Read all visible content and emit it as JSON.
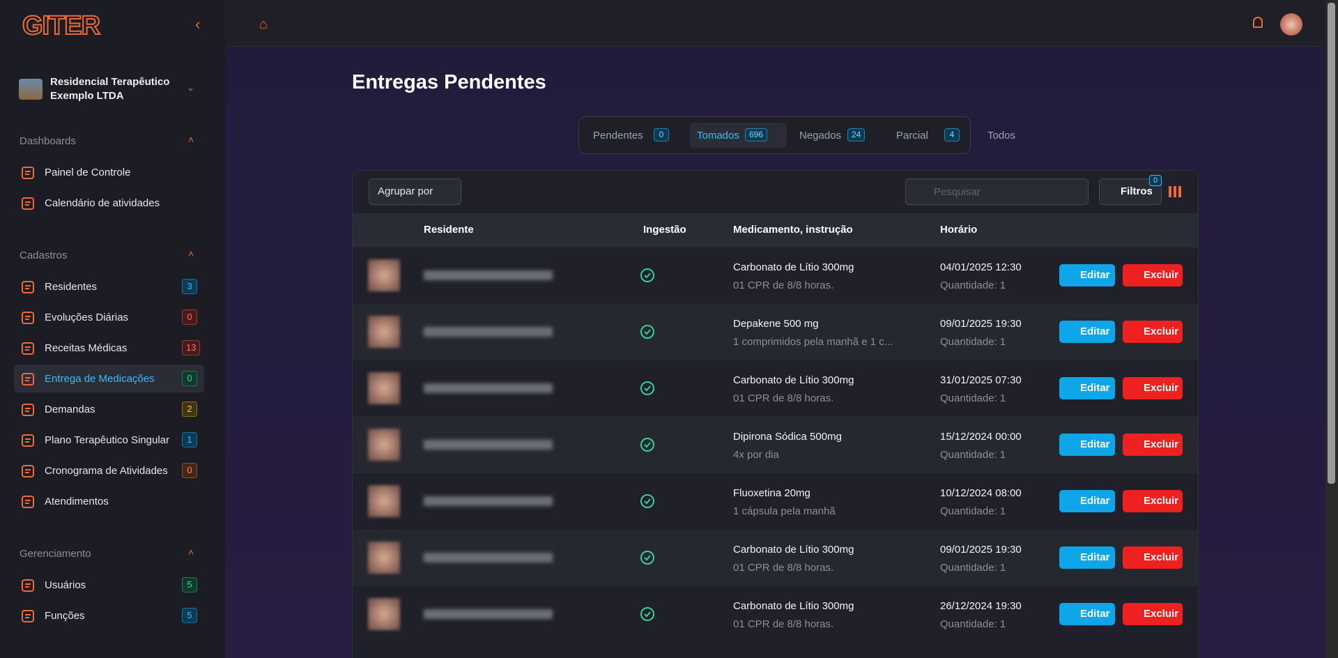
{
  "sidebar": {
    "logo": "GITER",
    "organization": "Residencial Terapêutico Exemplo LTDA",
    "sections": [
      {
        "title": "Dashboards",
        "items": [
          {
            "label": "Painel de Controle"
          },
          {
            "label": "Calendário de atividades"
          }
        ]
      },
      {
        "title": "Cadastros",
        "items": [
          {
            "label": "Residentes",
            "badge": "3",
            "badge_color": "blue"
          },
          {
            "label": "Evoluções Diárias",
            "badge": "0",
            "badge_color": "red"
          },
          {
            "label": "Receitas Médicas",
            "badge": "13",
            "badge_color": "red"
          },
          {
            "label": "Entrega de Medicações",
            "badge": "0",
            "badge_color": "green",
            "active": true
          },
          {
            "label": "Demandas",
            "badge": "2",
            "badge_color": "yellow"
          },
          {
            "label": "Plano Terapêutico Singular",
            "badge": "1",
            "badge_color": "blue"
          },
          {
            "label": "Cronograma de Atividades",
            "badge": "0",
            "badge_color": "orange"
          },
          {
            "label": "Atendimentos"
          }
        ]
      },
      {
        "title": "Gerenciamento",
        "items": [
          {
            "label": "Usuários",
            "badge": "5",
            "badge_color": "green"
          },
          {
            "label": "Funções",
            "badge": "5",
            "badge_color": "blue"
          }
        ]
      }
    ]
  },
  "page": {
    "title": "Entregas Pendentes",
    "tabs": [
      {
        "label": "Pendentes",
        "count": "0"
      },
      {
        "label": "Tomados",
        "count": "696",
        "active": true
      },
      {
        "label": "Negados",
        "count": "24"
      },
      {
        "label": "Parcial",
        "count": "4"
      },
      {
        "label": "Todos"
      }
    ],
    "group_by": "Agrupar por",
    "search_placeholder": "Pesquisar",
    "filters": "Filtros",
    "filters_count": "0"
  },
  "table": {
    "columns": [
      "Residente",
      "Ingestão",
      "Medicamento, instrução",
      "Horário"
    ],
    "edit_label": "Editar",
    "delete_label": "Excluir",
    "rows": [
      {
        "medication": "Carbonato de Lítio 300mg",
        "instruction": "01 CPR de 8/8 horas.",
        "time": "04/01/2025 12:30",
        "quantity": "Quantidade: 1"
      },
      {
        "medication": "Depakene 500 mg",
        "instruction": "1 comprimidos pela manhã e 1 c...",
        "time": "09/01/2025 19:30",
        "quantity": "Quantidade: 1"
      },
      {
        "medication": "Carbonato de Lítio 300mg",
        "instruction": "01 CPR de 8/8 horas.",
        "time": "31/01/2025 07:30",
        "quantity": "Quantidade: 1"
      },
      {
        "medication": "Dipirona Sódica 500mg",
        "instruction": "4x por dia",
        "time": "15/12/2024 00:00",
        "quantity": "Quantidade: 1"
      },
      {
        "medication": "Fluoxetina 20mg",
        "instruction": "1 cápsula pela manhã",
        "time": "10/12/2024 08:00",
        "quantity": "Quantidade: 1"
      },
      {
        "medication": "Carbonato de Lítio 300mg",
        "instruction": "01 CPR de 8/8 horas.",
        "time": "09/01/2025 19:30",
        "quantity": "Quantidade: 1"
      },
      {
        "medication": "Carbonato de Lítio 300mg",
        "instruction": "01 CPR de 8/8 horas.",
        "time": "26/12/2024 19:30",
        "quantity": "Quantidade: 1"
      }
    ]
  }
}
